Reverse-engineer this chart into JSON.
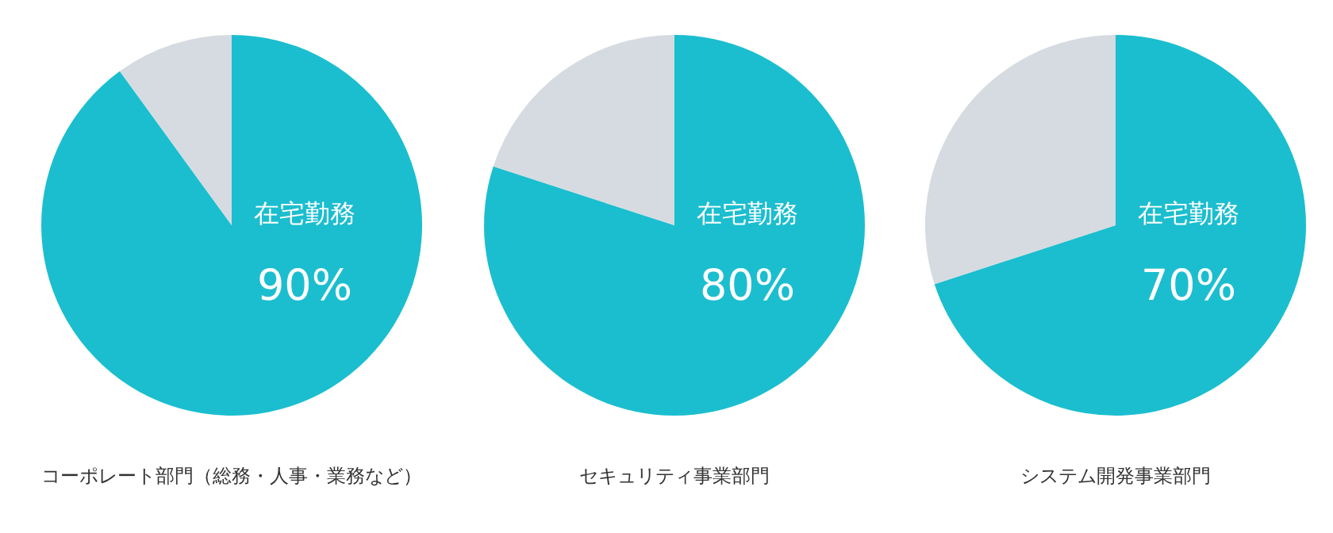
{
  "chart_data": [
    {
      "type": "pie",
      "title": "コーポレート部門（総務・人事・業務など）",
      "categories": [
        "在宅勤務",
        null
      ],
      "values": [
        90,
        10
      ],
      "colors": [
        "#1bbecf",
        "#d5dbe0"
      ],
      "value_labels": [
        "90%",
        null
      ]
    },
    {
      "type": "pie",
      "title": "セキュリティ事業部門",
      "categories": [
        "在宅勤務",
        null
      ],
      "values": [
        80,
        20
      ],
      "colors": [
        "#1bbecf",
        "#d5dbe0"
      ],
      "value_labels": [
        "80%",
        null
      ]
    },
    {
      "type": "pie",
      "title": "システム開発事業部門",
      "categories": [
        "在宅勤務",
        null
      ],
      "values": [
        70,
        30
      ],
      "colors": [
        "#1bbecf",
        "#d5dbe0"
      ],
      "value_labels": [
        "70%",
        null
      ]
    }
  ]
}
